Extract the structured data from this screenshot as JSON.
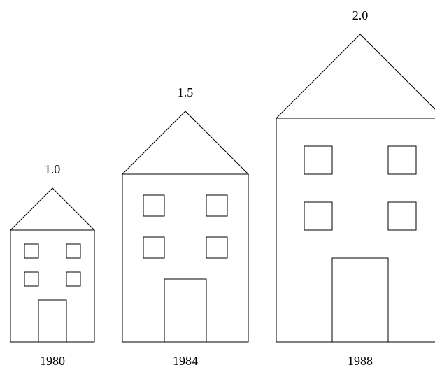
{
  "chart_data": {
    "type": "pictogram",
    "categories": [
      "1980",
      "1984",
      "1988"
    ],
    "values": [
      1.0,
      1.5,
      2.0
    ],
    "value_labels": [
      "1.0",
      "1.5",
      "2.0"
    ],
    "color": "#000000"
  }
}
